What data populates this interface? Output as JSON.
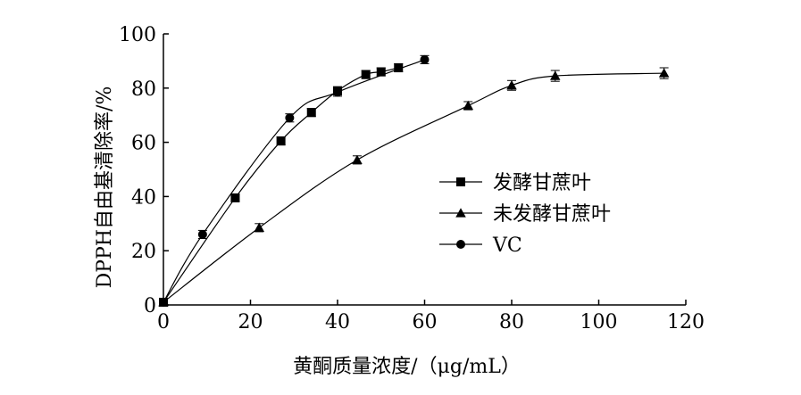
{
  "chart_data": {
    "type": "line",
    "title": "",
    "xlabel": "黄酮质量浓度/（μg/mL）",
    "ylabel": "DPPH自由基清除率/%",
    "xlim": [
      0,
      120
    ],
    "ylim": [
      0,
      100
    ],
    "xticks": [
      0,
      20,
      40,
      60,
      80,
      100,
      120
    ],
    "yticks": [
      0,
      20,
      40,
      60,
      80,
      100
    ],
    "grid": false,
    "legend_position": "center-right",
    "series": [
      {
        "name": "发酵甘蔗叶",
        "marker": "square",
        "x": [
          0,
          16.5,
          27,
          34,
          40,
          46.5,
          50,
          54
        ],
        "y": [
          1,
          39.5,
          60.5,
          71,
          79,
          85,
          86,
          87.5
        ],
        "err": [
          0.8,
          1.2,
          1.5,
          1.5,
          1.5,
          1.5,
          1.5,
          1.5
        ]
      },
      {
        "name": "未发酵甘蔗叶",
        "marker": "triangle",
        "x": [
          0,
          22,
          44.5,
          70,
          80,
          90,
          115
        ],
        "y": [
          1,
          28.5,
          53.5,
          73.5,
          81,
          84.5,
          85.5
        ],
        "err": [
          0.8,
          1.5,
          1.5,
          1.5,
          1.8,
          2,
          2
        ]
      },
      {
        "name": "VC",
        "marker": "circle",
        "x": [
          0,
          9,
          29,
          40,
          60
        ],
        "y": [
          1,
          26,
          69,
          78.5,
          90.5
        ],
        "err": [
          0.8,
          1.5,
          1.5,
          1.5,
          1.5
        ]
      }
    ]
  }
}
